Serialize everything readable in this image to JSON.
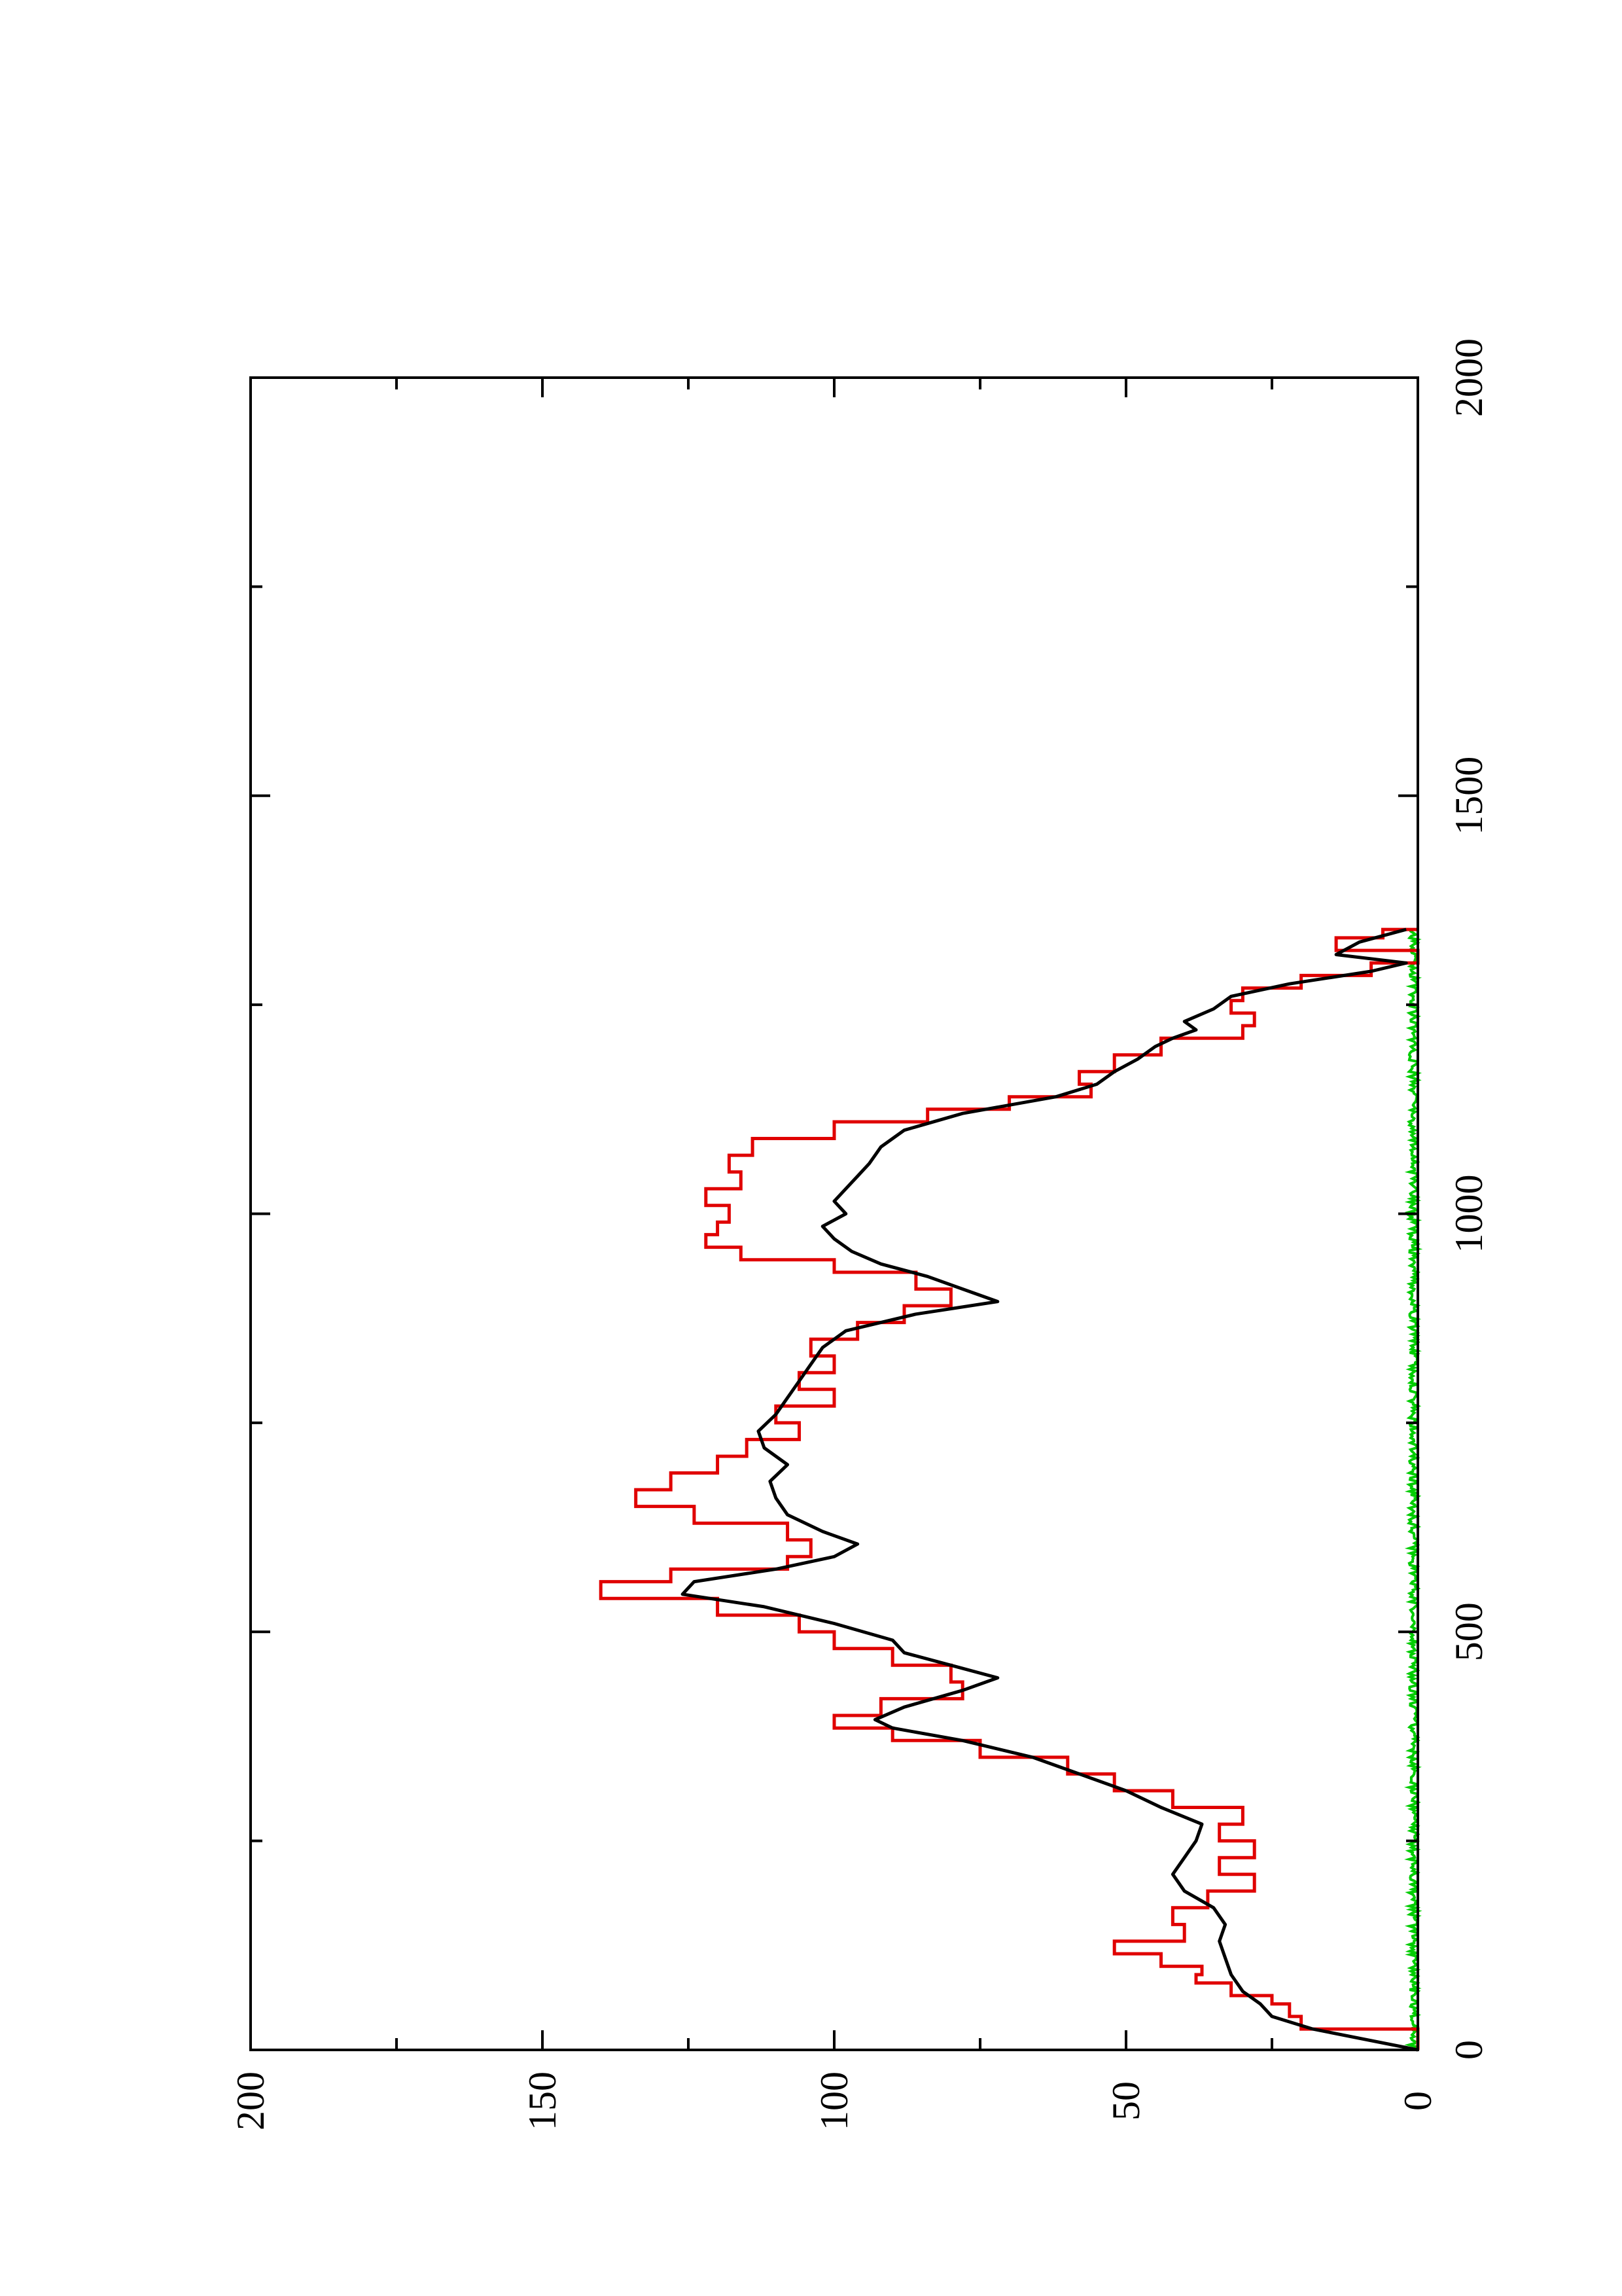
{
  "chart_data": {
    "type": "line",
    "title": "",
    "xlabel": "",
    "ylabel": "",
    "orientation": "rotated 90 degrees counter-clockwise (landscape plot on portrait page)",
    "xlim": [
      0,
      2000
    ],
    "ylim": [
      0,
      200
    ],
    "x_ticks": [
      0,
      500,
      1000,
      1500,
      2000
    ],
    "x_tick_labels": [
      "0",
      "500",
      "1000",
      "1500",
      "2000"
    ],
    "y_ticks": [
      0,
      50,
      100,
      150,
      200
    ],
    "y_tick_labels": [
      "0",
      "50",
      "100",
      "150",
      "200"
    ],
    "grid": false,
    "legend": "none",
    "series": [
      {
        "color": "#000000",
        "points": [
          [
            0,
            0
          ],
          [
            25,
            18
          ],
          [
            40,
            25
          ],
          [
            55,
            27
          ],
          [
            70,
            30
          ],
          [
            90,
            32
          ],
          [
            110,
            33
          ],
          [
            130,
            34
          ],
          [
            150,
            33
          ],
          [
            170,
            35
          ],
          [
            190,
            40
          ],
          [
            210,
            42
          ],
          [
            230,
            40
          ],
          [
            250,
            38
          ],
          [
            270,
            37
          ],
          [
            290,
            44
          ],
          [
            310,
            50
          ],
          [
            330,
            58
          ],
          [
            350,
            66
          ],
          [
            370,
            78
          ],
          [
            385,
            90
          ],
          [
            395,
            93
          ],
          [
            410,
            88
          ],
          [
            430,
            78
          ],
          [
            445,
            72
          ],
          [
            460,
            80
          ],
          [
            475,
            88
          ],
          [
            490,
            90
          ],
          [
            510,
            100
          ],
          [
            530,
            112
          ],
          [
            545,
            126
          ],
          [
            560,
            124
          ],
          [
            575,
            110
          ],
          [
            590,
            100
          ],
          [
            605,
            96
          ],
          [
            620,
            102
          ],
          [
            640,
            108
          ],
          [
            660,
            110
          ],
          [
            680,
            111
          ],
          [
            700,
            108
          ],
          [
            720,
            112
          ],
          [
            740,
            113
          ],
          [
            760,
            110
          ],
          [
            780,
            108
          ],
          [
            800,
            106
          ],
          [
            820,
            104
          ],
          [
            840,
            102
          ],
          [
            860,
            98
          ],
          [
            880,
            86
          ],
          [
            895,
            72
          ],
          [
            910,
            78
          ],
          [
            925,
            84
          ],
          [
            940,
            92
          ],
          [
            955,
            97
          ],
          [
            970,
            100
          ],
          [
            985,
            102
          ],
          [
            1000,
            98
          ],
          [
            1015,
            100
          ],
          [
            1030,
            98
          ],
          [
            1045,
            96
          ],
          [
            1060,
            94
          ],
          [
            1080,
            92
          ],
          [
            1100,
            88
          ],
          [
            1120,
            78
          ],
          [
            1140,
            62
          ],
          [
            1155,
            55
          ],
          [
            1170,
            52
          ],
          [
            1185,
            48
          ],
          [
            1200,
            45
          ],
          [
            1210,
            42
          ],
          [
            1220,
            38
          ],
          [
            1230,
            40
          ],
          [
            1245,
            35
          ],
          [
            1260,
            32
          ],
          [
            1275,
            22
          ],
          [
            1290,
            8
          ],
          [
            1300,
            2
          ],
          [
            1310,
            14
          ],
          [
            1325,
            10
          ],
          [
            1340,
            2
          ]
        ]
      },
      {
        "color": "#e00000",
        "points": [
          [
            0,
            0
          ],
          [
            25,
            20
          ],
          [
            40,
            22
          ],
          [
            55,
            25
          ],
          [
            65,
            32
          ],
          [
            80,
            38
          ],
          [
            90,
            37
          ],
          [
            100,
            44
          ],
          [
            115,
            52
          ],
          [
            130,
            40
          ],
          [
            150,
            42
          ],
          [
            170,
            36
          ],
          [
            190,
            28
          ],
          [
            210,
            34
          ],
          [
            230,
            28
          ],
          [
            250,
            34
          ],
          [
            270,
            30
          ],
          [
            290,
            42
          ],
          [
            310,
            52
          ],
          [
            330,
            60
          ],
          [
            350,
            75
          ],
          [
            370,
            90
          ],
          [
            385,
            100
          ],
          [
            400,
            92
          ],
          [
            420,
            78
          ],
          [
            440,
            80
          ],
          [
            460,
            90
          ],
          [
            480,
            100
          ],
          [
            500,
            106
          ],
          [
            520,
            120
          ],
          [
            540,
            140
          ],
          [
            560,
            128
          ],
          [
            575,
            108
          ],
          [
            590,
            104
          ],
          [
            610,
            108
          ],
          [
            630,
            124
          ],
          [
            650,
            134
          ],
          [
            670,
            128
          ],
          [
            690,
            120
          ],
          [
            710,
            115
          ],
          [
            730,
            106
          ],
          [
            750,
            110
          ],
          [
            770,
            100
          ],
          [
            790,
            106
          ],
          [
            810,
            100
          ],
          [
            830,
            104
          ],
          [
            850,
            96
          ],
          [
            870,
            88
          ],
          [
            890,
            80
          ],
          [
            910,
            86
          ],
          [
            930,
            100
          ],
          [
            945,
            116
          ],
          [
            960,
            122
          ],
          [
            975,
            120
          ],
          [
            990,
            118
          ],
          [
            1010,
            122
          ],
          [
            1030,
            116
          ],
          [
            1050,
            118
          ],
          [
            1070,
            114
          ],
          [
            1090,
            100
          ],
          [
            1110,
            84
          ],
          [
            1125,
            70
          ],
          [
            1140,
            56
          ],
          [
            1155,
            58
          ],
          [
            1170,
            52
          ],
          [
            1190,
            44
          ],
          [
            1210,
            30
          ],
          [
            1225,
            28
          ],
          [
            1240,
            32
          ],
          [
            1255,
            30
          ],
          [
            1270,
            20
          ],
          [
            1285,
            8
          ],
          [
            1300,
            0
          ],
          [
            1315,
            14
          ],
          [
            1330,
            6
          ],
          [
            1340,
            0
          ]
        ]
      },
      {
        "color": "#00cc00",
        "noise_amplitude": 1.5,
        "x_range": [
          0,
          1340
        ]
      }
    ]
  }
}
